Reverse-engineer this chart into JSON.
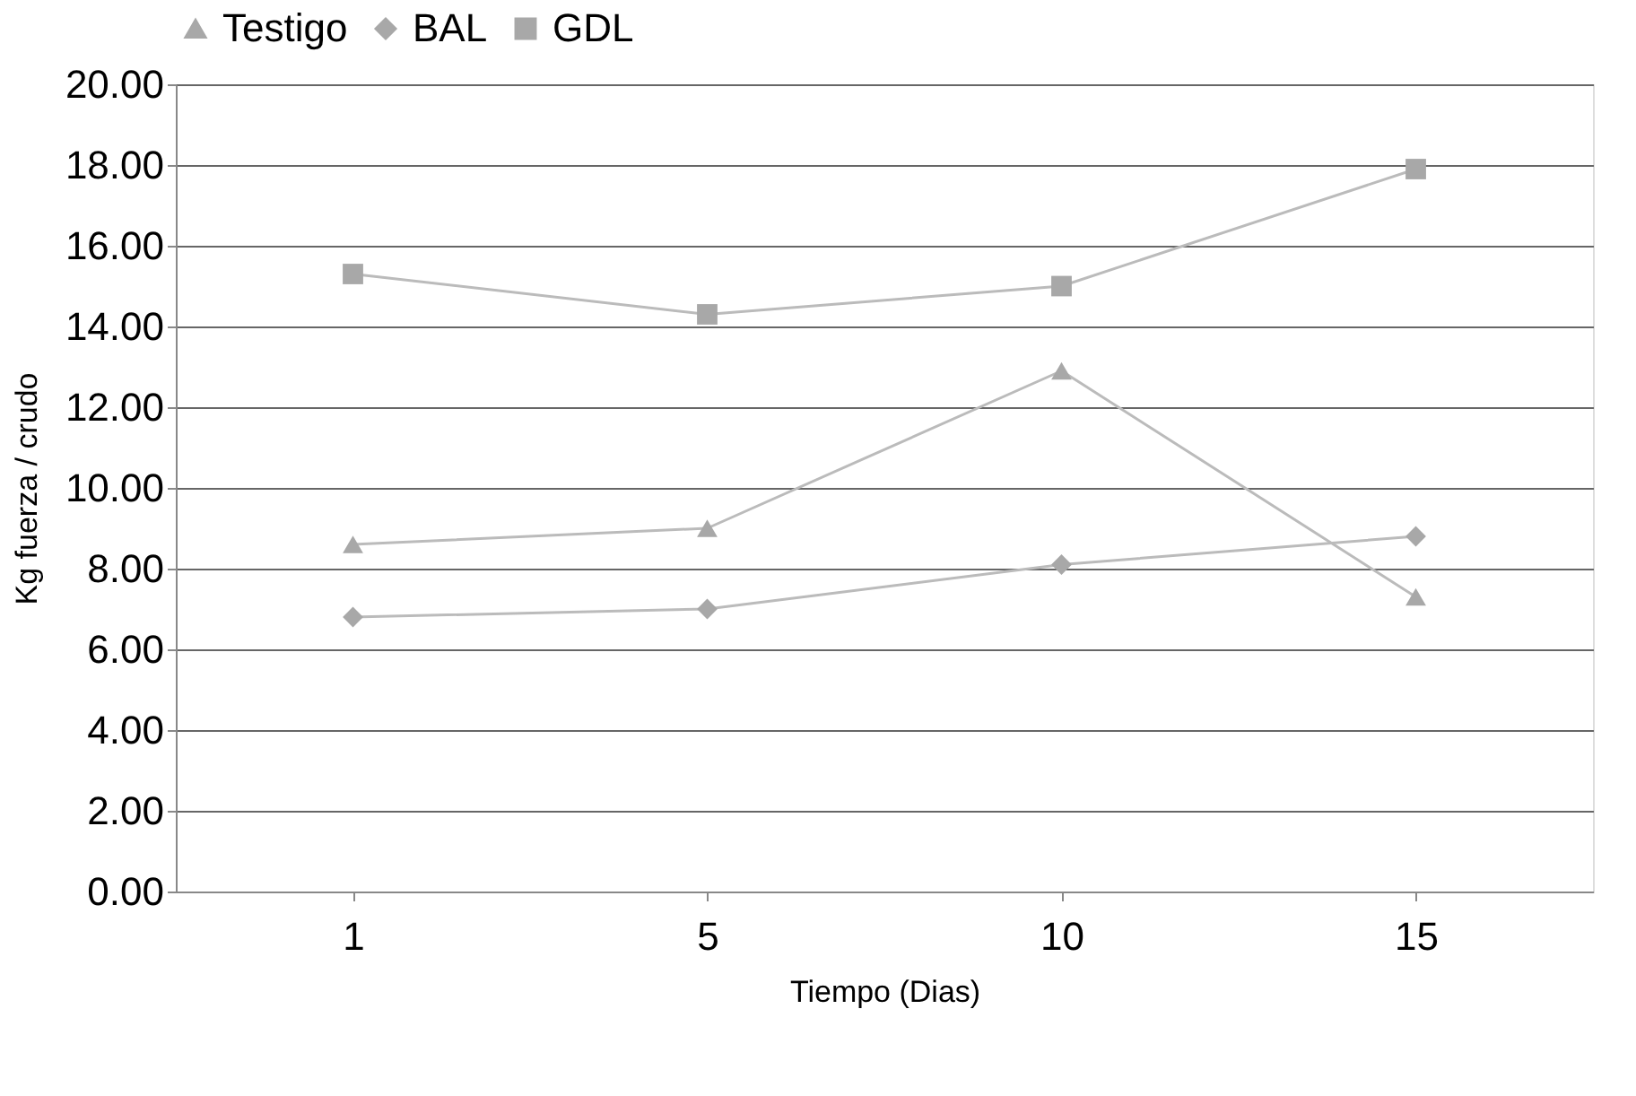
{
  "chart_data": {
    "type": "line",
    "xlabel": "Tiempo (Dias)",
    "ylabel": "Kg fuerza / crudo",
    "categories": [
      "1",
      "5",
      "10",
      "15"
    ],
    "series": [
      {
        "name": "Testigo",
        "color": "#a8a8a8",
        "marker": "triangle",
        "values": [
          8.6,
          9.0,
          12.9,
          7.3
        ]
      },
      {
        "name": "BAL",
        "color": "#a8a8a8",
        "marker": "diamond",
        "values": [
          6.8,
          7.0,
          8.1,
          8.8
        ]
      },
      {
        "name": "GDL",
        "color": "#a8a8a8",
        "marker": "square",
        "values": [
          15.3,
          14.3,
          15.0,
          17.9
        ]
      }
    ],
    "ylim": [
      0,
      20
    ],
    "yticks": [
      {
        "value": 0,
        "label": "0.00"
      },
      {
        "value": 2,
        "label": "2.00"
      },
      {
        "value": 4,
        "label": "4.00"
      },
      {
        "value": 6,
        "label": "6.00"
      },
      {
        "value": 8,
        "label": "8.00"
      },
      {
        "value": 10,
        "label": "10.00"
      },
      {
        "value": 12,
        "label": "12.00"
      },
      {
        "value": 14,
        "label": "14.00"
      },
      {
        "value": 16,
        "label": "16.00"
      },
      {
        "value": 18,
        "label": "18.00"
      },
      {
        "value": 20,
        "label": "20.00"
      }
    ],
    "grid": "y",
    "legend": "top left",
    "line_style": "solid"
  }
}
